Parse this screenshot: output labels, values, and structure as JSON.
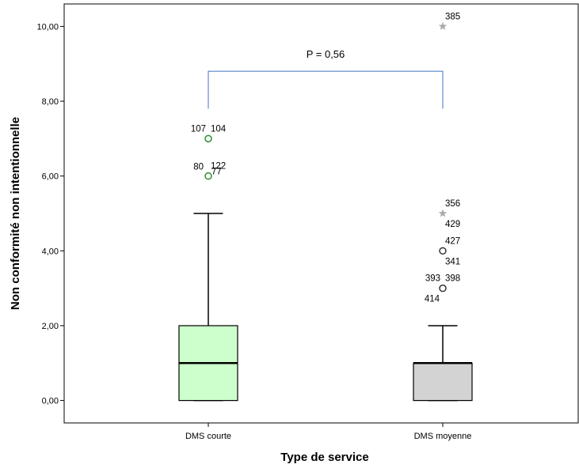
{
  "chart_data": {
    "type": "boxplot",
    "xlabel": "Type de service",
    "ylabel": "Non conformité non intentionnelle",
    "ylim": [
      -0.6,
      10.6
    ],
    "yticks": [
      0,
      2,
      4,
      6,
      8,
      10
    ],
    "ytick_labels": [
      "0,00",
      "2,00",
      "4,00",
      "6,00",
      "8,00",
      "10,00"
    ],
    "grid": false,
    "categories": [
      "DMS courte",
      "DMS moyenne"
    ],
    "boxes": [
      {
        "category": "DMS courte",
        "min": 0,
        "q1": 0,
        "median": 1,
        "q3": 2,
        "max": 5,
        "fill": "#ccffcc",
        "outliers": [
          {
            "value": 7,
            "kind": "circle",
            "color": "#2e8b2e",
            "labels": [
              {
                "text": "107",
                "pos": "upper-left"
              },
              {
                "text": "104",
                "pos": "upper-right"
              }
            ]
          },
          {
            "value": 6,
            "kind": "circle",
            "color": "#2e8b2e",
            "labels": [
              {
                "text": "122",
                "pos": "upper-right"
              },
              {
                "text": "80",
                "pos": "left"
              },
              {
                "text": "77",
                "pos": "right"
              }
            ]
          }
        ]
      },
      {
        "category": "DMS moyenne",
        "min": 0,
        "q1": 0,
        "median": 1,
        "q3": 1,
        "max": 2,
        "fill": "#d3d3d3",
        "outliers": [
          {
            "value": 10,
            "kind": "star",
            "color": "#aaaaaa",
            "labels": [
              {
                "text": "385",
                "pos": "upper-right"
              }
            ]
          },
          {
            "value": 5,
            "kind": "star",
            "color": "#aaaaaa",
            "labels": [
              {
                "text": "356",
                "pos": "upper-right"
              },
              {
                "text": "429",
                "pos": "lower-right"
              }
            ]
          },
          {
            "value": 4,
            "kind": "circle",
            "color": "#333333",
            "labels": [
              {
                "text": "427",
                "pos": "upper-right"
              },
              {
                "text": "341",
                "pos": "lower-right"
              }
            ]
          },
          {
            "value": 3,
            "kind": "circle",
            "color": "#333333",
            "labels": [
              {
                "text": "393",
                "pos": "upper-left"
              },
              {
                "text": "398",
                "pos": "upper-right"
              },
              {
                "text": "414",
                "pos": "lower-left"
              }
            ]
          }
        ]
      }
    ],
    "annotation": {
      "text": "P = 0,56",
      "bracket_color": "#4472c4",
      "bracket_y": 8.8,
      "leg_bottom": 7.8
    }
  }
}
